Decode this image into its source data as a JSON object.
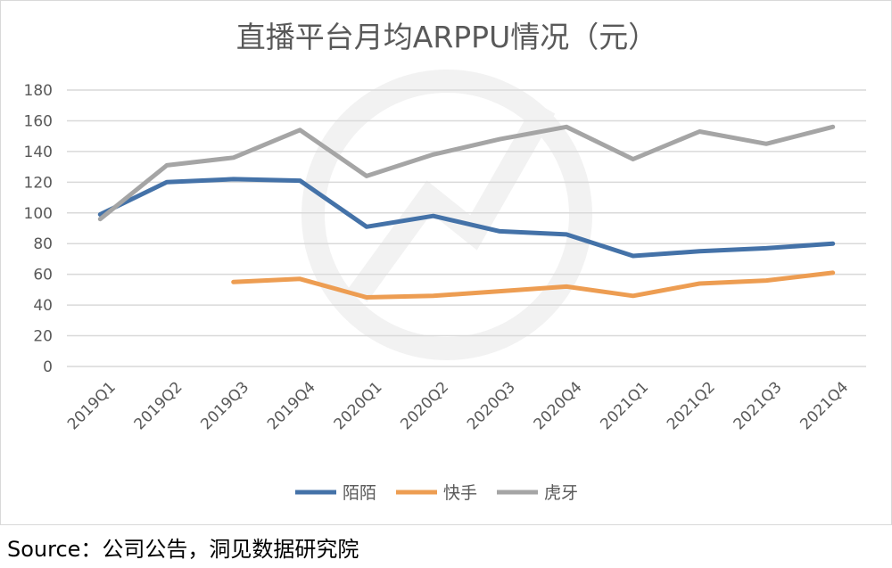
{
  "chart_data": {
    "type": "line",
    "title": "直播平台月均ARPPU情况（元）",
    "xlabel": "",
    "ylabel": "",
    "categories": [
      "2019Q1",
      "2019Q2",
      "2019Q3",
      "2019Q4",
      "2020Q1",
      "2020Q2",
      "2020Q3",
      "2020Q4",
      "2021Q1",
      "2021Q2",
      "2021Q3",
      "2021Q4"
    ],
    "yticks": [
      0,
      20,
      40,
      60,
      80,
      100,
      120,
      140,
      160,
      180
    ],
    "ylim": [
      0,
      180
    ],
    "grid": true,
    "legend_position": "bottom",
    "series": [
      {
        "name": "陌陌",
        "color": "#4472a8",
        "values": [
          99,
          120,
          122,
          121,
          91,
          98,
          88,
          86,
          72,
          75,
          77,
          80
        ]
      },
      {
        "name": "快手",
        "color": "#ed9d52",
        "values": [
          null,
          null,
          55,
          57,
          45,
          46,
          49,
          52,
          46,
          54,
          56,
          61
        ]
      },
      {
        "name": "虎牙",
        "color": "#a5a5a5",
        "values": [
          96,
          131,
          136,
          154,
          124,
          138,
          148,
          156,
          135,
          153,
          145,
          156
        ]
      }
    ]
  },
  "source_text": "Source：公司公告，洞见数据研究院"
}
